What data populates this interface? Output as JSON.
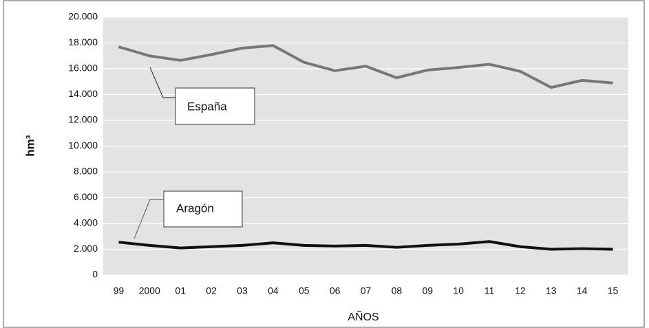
{
  "chart_data": {
    "type": "line",
    "x_label": "AÑOS",
    "y_label": "hm³",
    "categories": [
      "99",
      "2000",
      "01",
      "02",
      "03",
      "04",
      "05",
      "06",
      "07",
      "08",
      "09",
      "10",
      "11",
      "12",
      "13",
      "14",
      "15"
    ],
    "series": [
      {
        "name": "España",
        "color": "#777777",
        "values": [
          17700,
          17000,
          16650,
          17100,
          17600,
          17800,
          16500,
          15850,
          16200,
          15300,
          15900,
          16100,
          16350,
          15800,
          14550,
          15100,
          14900
        ]
      },
      {
        "name": "Aragón",
        "color": "#111111",
        "values": [
          2550,
          2300,
          2100,
          2200,
          2300,
          2500,
          2300,
          2250,
          2300,
          2150,
          2300,
          2400,
          2600,
          2200,
          2000,
          2050,
          2000
        ]
      }
    ],
    "ylim": [
      0,
      20000
    ],
    "yticks": [
      0,
      {
        "value": 2000,
        "label": "2.000"
      },
      {
        "value": 4000,
        "label": "4.000"
      },
      {
        "value": 6000,
        "label": "6.000"
      },
      {
        "value": 8000,
        "label": "8.000"
      },
      {
        "value": 10000,
        "label": "10.000"
      },
      {
        "value": 12000,
        "label": "12.000"
      },
      {
        "value": 14000,
        "label": "14.000"
      },
      {
        "value": 16000,
        "label": "16.000"
      },
      {
        "value": 18000,
        "label": "18.000"
      },
      {
        "value": 20000,
        "label": "20.000"
      }
    ],
    "grid": true
  }
}
